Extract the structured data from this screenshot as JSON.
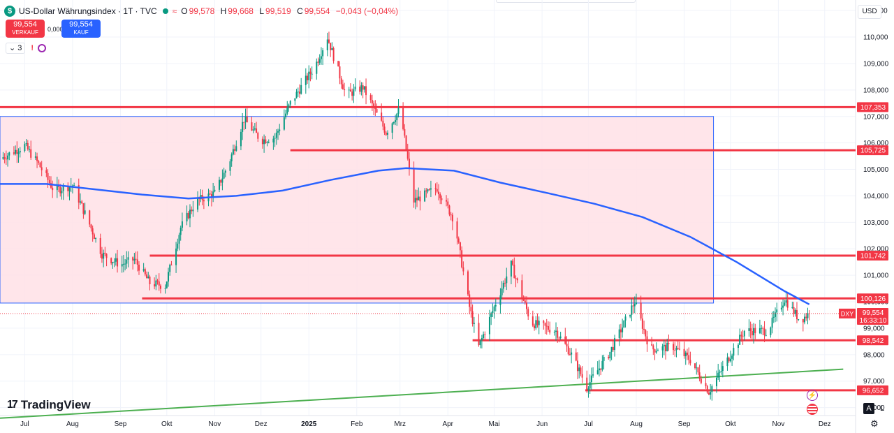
{
  "header": {
    "logo_letter": "$",
    "title": "US-Dollar Währungsindex · 1T · TVC",
    "ohlc": [
      {
        "k": "O",
        "v": "99,578"
      },
      {
        "k": "H",
        "v": "99,668"
      },
      {
        "k": "L",
        "v": "99,519"
      },
      {
        "k": "C",
        "v": "99,554"
      }
    ],
    "change": "−0,043 (−0,04%)"
  },
  "trade": {
    "sell_price": "99,554",
    "sell_label": "VERKAUF",
    "spread": "0,000",
    "buy_price": "99,554",
    "buy_label": "KAUF"
  },
  "indicators": {
    "count": "3"
  },
  "currency": "USD",
  "brand": "TradingView",
  "buttons": {
    "auto": "A",
    "log": "L"
  },
  "colors": {
    "up": "#089981",
    "down": "#f23645",
    "ma": "#2962ff",
    "trend": "#4caf50",
    "zone": "#ffe0e6"
  },
  "chart_data": {
    "type": "candlestick",
    "symbol": "DXY",
    "last_price": "99,554",
    "countdown": "16:33:10",
    "ylim": [
      95.7,
      111.4
    ],
    "y_ticks": [
      "96,000",
      "97,000",
      "98,000",
      "99,000",
      "100,000",
      "101,000",
      "102,000",
      "103,000",
      "104,000",
      "105,000",
      "106,000",
      "107,000",
      "108,000",
      "109,000",
      "110,000",
      "111,000"
    ],
    "x_ticks": [
      "Jul",
      "Aug",
      "Sep",
      "Okt",
      "Nov",
      "Dez",
      "2025",
      "Feb",
      "Mrz",
      "Apr",
      "Mai",
      "Jun",
      "Jul",
      "Aug",
      "Sep",
      "Okt",
      "Nov",
      "Dez"
    ],
    "x_start": "2024-06-15",
    "x_end": "2025-12-21",
    "horizontal_levels": [
      {
        "label": "107,353",
        "value": 107.353,
        "from": "2024-06-15"
      },
      {
        "label": "105,725",
        "value": 105.725,
        "from": "2024-12-20"
      },
      {
        "label": "101,742",
        "value": 101.742,
        "from": "2024-09-20"
      },
      {
        "label": "100,126",
        "value": 100.126,
        "from": "2024-09-15"
      },
      {
        "label": "98,542",
        "value": 98.542,
        "from": "2025-04-17"
      },
      {
        "label": "96,652",
        "value": 96.652,
        "from": "2025-06-29"
      }
    ],
    "zone": {
      "from": "2024-06-15",
      "to": "2025-09-20",
      "top": 107.0,
      "bottom": 99.95
    },
    "trendline": {
      "from_date": "2024-06-15",
      "from_value": 95.6,
      "to_date": "2025-12-13",
      "to_value": 97.45
    },
    "moving_average": [
      [
        "2024-06-15",
        104.45
      ],
      [
        "2024-07-15",
        104.45
      ],
      [
        "2024-08-15",
        104.25
      ],
      [
        "2024-09-15",
        104.05
      ],
      [
        "2024-10-15",
        103.9
      ],
      [
        "2024-11-15",
        104.0
      ],
      [
        "2024-12-15",
        104.2
      ],
      [
        "2025-01-15",
        104.6
      ],
      [
        "2025-02-15",
        104.95
      ],
      [
        "2025-03-05",
        105.05
      ],
      [
        "2025-04-05",
        104.95
      ],
      [
        "2025-05-05",
        104.5
      ],
      [
        "2025-06-05",
        104.1
      ],
      [
        "2025-07-05",
        103.7
      ],
      [
        "2025-08-05",
        103.2
      ],
      [
        "2025-09-05",
        102.45
      ],
      [
        "2025-10-05",
        101.5
      ],
      [
        "2025-11-05",
        100.4
      ],
      [
        "2025-11-21",
        99.9
      ]
    ],
    "price_path": [
      [
        "2024-06-15",
        105.4
      ],
      [
        "2024-07-01",
        105.9
      ],
      [
        "2024-07-10",
        105.2
      ],
      [
        "2024-07-20",
        104.2
      ],
      [
        "2024-08-01",
        104.4
      ],
      [
        "2024-08-10",
        103.2
      ],
      [
        "2024-08-20",
        101.8
      ],
      [
        "2024-09-01",
        101.4
      ],
      [
        "2024-09-10",
        101.6
      ],
      [
        "2024-09-20",
        100.7
      ],
      [
        "2024-09-30",
        100.6
      ],
      [
        "2024-10-10",
        102.8
      ],
      [
        "2024-10-20",
        103.8
      ],
      [
        "2024-11-01",
        104.1
      ],
      [
        "2024-11-10",
        105.2
      ],
      [
        "2024-11-20",
        106.9
      ],
      [
        "2024-12-01",
        106.1
      ],
      [
        "2024-12-10",
        106.2
      ],
      [
        "2024-12-20",
        107.5
      ],
      [
        "2025-01-05",
        108.9
      ],
      [
        "2025-01-13",
        110.0
      ],
      [
        "2025-01-25",
        107.8
      ],
      [
        "2025-02-05",
        108.1
      ],
      [
        "2025-02-20",
        106.4
      ],
      [
        "2025-03-01",
        107.3
      ],
      [
        "2025-03-10",
        103.8
      ],
      [
        "2025-03-25",
        104.3
      ],
      [
        "2025-04-05",
        103.1
      ],
      [
        "2025-04-15",
        99.8
      ],
      [
        "2025-04-21",
        98.3
      ],
      [
        "2025-05-01",
        99.8
      ],
      [
        "2025-05-12",
        101.4
      ],
      [
        "2025-05-25",
        99.2
      ],
      [
        "2025-06-10",
        98.9
      ],
      [
        "2025-06-20",
        98.0
      ],
      [
        "2025-06-30",
        96.8
      ],
      [
        "2025-07-15",
        98.1
      ],
      [
        "2025-07-31",
        100.0
      ],
      [
        "2025-08-10",
        98.2
      ],
      [
        "2025-08-25",
        98.3
      ],
      [
        "2025-09-05",
        97.8
      ],
      [
        "2025-09-17",
        96.6
      ],
      [
        "2025-09-30",
        97.9
      ],
      [
        "2025-10-10",
        98.9
      ],
      [
        "2025-10-25",
        98.9
      ],
      [
        "2025-11-05",
        100.1
      ],
      [
        "2025-11-15",
        99.3
      ],
      [
        "2025-11-21",
        99.554
      ]
    ],
    "legend": "none",
    "grid": true
  }
}
